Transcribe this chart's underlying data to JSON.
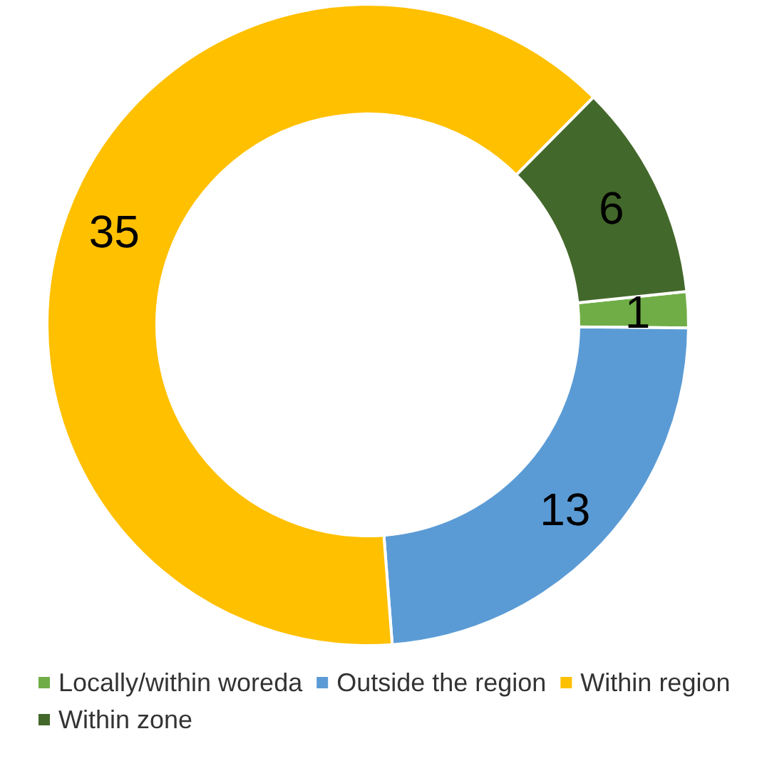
{
  "chart_data": {
    "type": "donut",
    "categories": [
      "Locally/within woreda",
      "Outside the region",
      "Within region",
      "Within zone"
    ],
    "values": [
      1,
      13,
      35,
      6
    ],
    "colors": [
      "#70ad47",
      "#5b9bd5",
      "#ffc000",
      "#43682b"
    ],
    "data_labels": true,
    "legend": "bottom"
  }
}
